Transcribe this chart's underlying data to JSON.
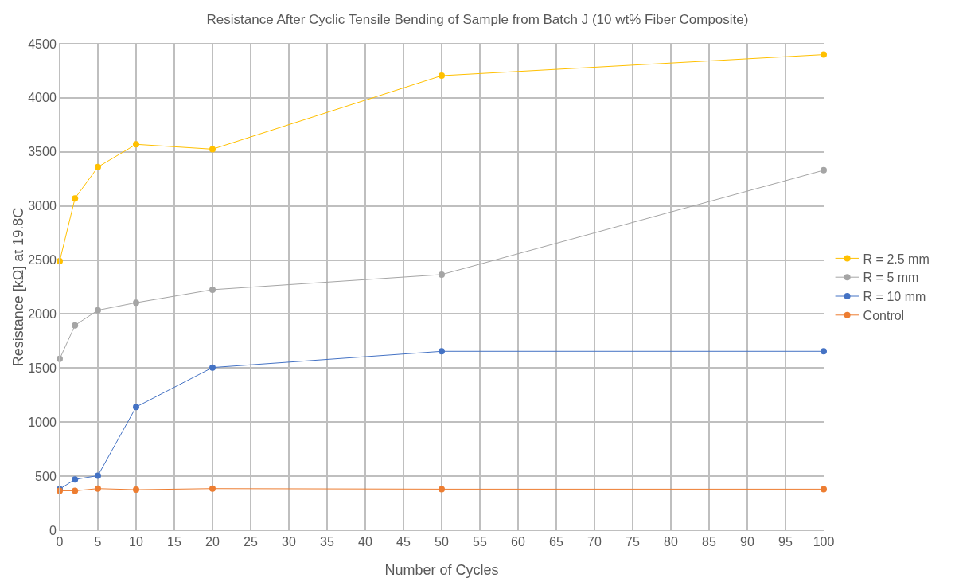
{
  "chart_data": {
    "type": "line",
    "title": "Resistance After Cyclic Tensile Bending of Sample from Batch J (10 wt% Fiber Composite)",
    "xlabel": "Number of Cycles",
    "ylabel": "Resistance [kΩ] at 19.8C",
    "x": [
      0,
      2,
      5,
      10,
      20,
      50,
      100
    ],
    "series": [
      {
        "name": "R = 2.5 mm",
        "color": "#ffc000",
        "values": [
          2490,
          3070,
          3360,
          3570,
          3525,
          4205,
          4400
        ]
      },
      {
        "name": "R = 5 mm",
        "color": "#a5a5a5",
        "values": [
          1585,
          1895,
          2035,
          2105,
          2225,
          2365,
          3330
        ]
      },
      {
        "name": "R = 10 mm",
        "color": "#4472c4",
        "values": [
          380,
          470,
          505,
          1140,
          1505,
          1655,
          1655
        ]
      },
      {
        "name": "Control",
        "color": "#ed7d31",
        "values": [
          365,
          365,
          385,
          375,
          385,
          380,
          380
        ]
      }
    ],
    "xlim": [
      0,
      100
    ],
    "xticks": [
      0,
      5,
      10,
      15,
      20,
      25,
      30,
      35,
      40,
      45,
      50,
      55,
      60,
      65,
      70,
      75,
      80,
      85,
      90,
      95,
      100
    ],
    "ylim": [
      0,
      4500
    ],
    "yticks": [
      0,
      500,
      1000,
      1500,
      2000,
      2500,
      3000,
      3500,
      4000,
      4500
    ],
    "grid": true,
    "legend": "right",
    "marker": "circle",
    "line_style": "solid"
  }
}
